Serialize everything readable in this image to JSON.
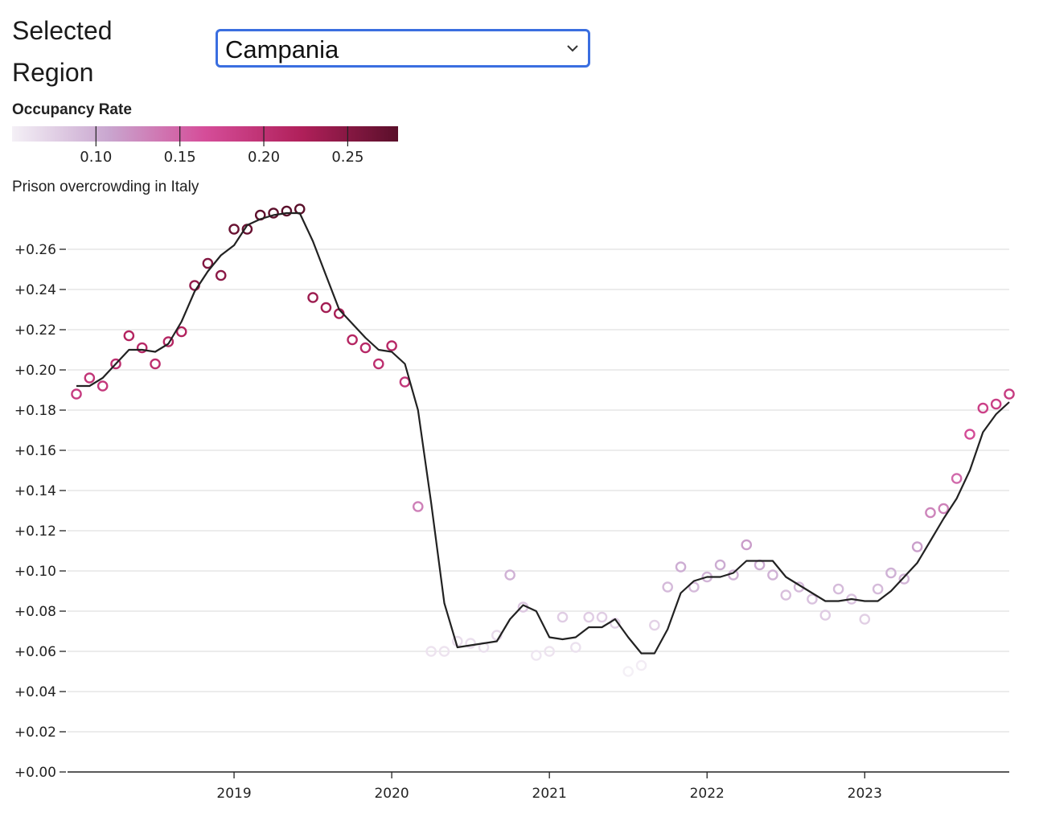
{
  "controls": {
    "region_label": "Selected Region",
    "region_value": "Campania"
  },
  "legend": {
    "title": "Occupancy Rate",
    "domain": [
      0.05,
      0.28
    ],
    "ticks": [
      "0.10",
      "0.15",
      "0.20",
      "0.25"
    ],
    "tick_values": [
      0.1,
      0.15,
      0.2,
      0.25
    ],
    "colors": [
      "#f4f0f6",
      "#c9a6cf",
      "#d54d99",
      "#b0205a",
      "#5a0f2a"
    ]
  },
  "chart_data": {
    "type": "scatter",
    "title": "Prison overcrowding in Italy",
    "xlabel": "",
    "ylabel": "",
    "x_range": [
      "2018-01",
      "2023-12"
    ],
    "ylim": [
      0,
      0.28
    ],
    "x_ticks": [
      "2019",
      "2020",
      "2021",
      "2022",
      "2023"
    ],
    "y_ticks": [
      "+0.00",
      "+0.02",
      "+0.04",
      "+0.06",
      "+0.08",
      "+0.10",
      "+0.12",
      "+0.14",
      "+0.16",
      "+0.18",
      "+0.20",
      "+0.22",
      "+0.24",
      "+0.26"
    ],
    "grid": "horizontal",
    "series": [
      {
        "kind": "points",
        "x": [
          "2018-01",
          "2018-02",
          "2018-03",
          "2018-04",
          "2018-05",
          "2018-06",
          "2018-07",
          "2018-08",
          "2018-09",
          "2018-10",
          "2018-11",
          "2018-12",
          "2019-01",
          "2019-02",
          "2019-03",
          "2019-04",
          "2019-05",
          "2019-06",
          "2019-07",
          "2019-08",
          "2019-09",
          "2019-10",
          "2019-11",
          "2019-12",
          "2020-01",
          "2020-02",
          "2020-03",
          "2020-04",
          "2020-05",
          "2020-06",
          "2020-07",
          "2020-08",
          "2020-09",
          "2020-10",
          "2020-11",
          "2020-12",
          "2021-01",
          "2021-02",
          "2021-03",
          "2021-04",
          "2021-05",
          "2021-06",
          "2021-07",
          "2021-08",
          "2021-09",
          "2021-10",
          "2021-11",
          "2021-12",
          "2022-01",
          "2022-02",
          "2022-03",
          "2022-04",
          "2022-05",
          "2022-06",
          "2022-07",
          "2022-08",
          "2022-09",
          "2022-10",
          "2022-11",
          "2022-12",
          "2023-01",
          "2023-02",
          "2023-03",
          "2023-04",
          "2023-05",
          "2023-06",
          "2023-07",
          "2023-08",
          "2023-09",
          "2023-10",
          "2023-11",
          "2023-12"
        ],
        "values": [
          0.188,
          0.196,
          0.192,
          0.203,
          0.217,
          0.211,
          0.203,
          0.214,
          0.219,
          0.242,
          0.253,
          0.247,
          0.27,
          0.27,
          0.277,
          0.278,
          0.279,
          0.28,
          0.236,
          0.231,
          0.228,
          0.215,
          0.211,
          0.203,
          0.212,
          0.194,
          0.132,
          0.06,
          0.06,
          0.065,
          0.064,
          0.062,
          0.068,
          0.098,
          0.082,
          0.058,
          0.06,
          0.077,
          0.062,
          0.077,
          0.077,
          0.074,
          0.05,
          0.053,
          0.073,
          0.092,
          0.102,
          0.092,
          0.097,
          0.103,
          0.098,
          0.113,
          0.103,
          0.098,
          0.088,
          0.092,
          0.086,
          0.078,
          0.091,
          0.086,
          0.076,
          0.091,
          0.099,
          0.096,
          0.112,
          0.129,
          0.131,
          0.146,
          0.168,
          0.181,
          0.183,
          0.188
        ]
      },
      {
        "kind": "line",
        "x": [
          "2018-01",
          "2018-02",
          "2018-03",
          "2018-04",
          "2018-05",
          "2018-06",
          "2018-07",
          "2018-08",
          "2018-09",
          "2018-10",
          "2018-11",
          "2018-12",
          "2019-01",
          "2019-02",
          "2019-03",
          "2019-04",
          "2019-05",
          "2019-06",
          "2019-07",
          "2019-08",
          "2019-09",
          "2019-10",
          "2019-11",
          "2019-12",
          "2020-01",
          "2020-02",
          "2020-03",
          "2020-04",
          "2020-05",
          "2020-06",
          "2020-07",
          "2020-08",
          "2020-09",
          "2020-10",
          "2020-11",
          "2020-12",
          "2021-01",
          "2021-02",
          "2021-03",
          "2021-04",
          "2021-05",
          "2021-06",
          "2021-07",
          "2021-08",
          "2021-09",
          "2021-10",
          "2021-11",
          "2021-12",
          "2022-01",
          "2022-02",
          "2022-03",
          "2022-04",
          "2022-05",
          "2022-06",
          "2022-07",
          "2022-08",
          "2022-09",
          "2022-10",
          "2022-11",
          "2022-12",
          "2023-01",
          "2023-02",
          "2023-03",
          "2023-04",
          "2023-05",
          "2023-06",
          "2023-07",
          "2023-08",
          "2023-09",
          "2023-10",
          "2023-11",
          "2023-12"
        ],
        "values": [
          0.192,
          0.192,
          0.196,
          0.203,
          0.21,
          0.21,
          0.209,
          0.213,
          0.224,
          0.239,
          0.249,
          0.257,
          0.262,
          0.272,
          0.275,
          0.277,
          0.278,
          0.278,
          0.264,
          0.247,
          0.23,
          0.223,
          0.216,
          0.21,
          0.209,
          0.203,
          0.18,
          0.134,
          0.084,
          0.062,
          0.063,
          0.064,
          0.065,
          0.076,
          0.083,
          0.08,
          0.067,
          0.066,
          0.067,
          0.072,
          0.072,
          0.076,
          0.067,
          0.059,
          0.059,
          0.071,
          0.089,
          0.095,
          0.097,
          0.097,
          0.099,
          0.105,
          0.105,
          0.105,
          0.097,
          0.093,
          0.089,
          0.085,
          0.085,
          0.086,
          0.085,
          0.085,
          0.09,
          0.097,
          0.104,
          0.115,
          0.126,
          0.136,
          0.15,
          0.169,
          0.178,
          0.184
        ]
      }
    ]
  }
}
